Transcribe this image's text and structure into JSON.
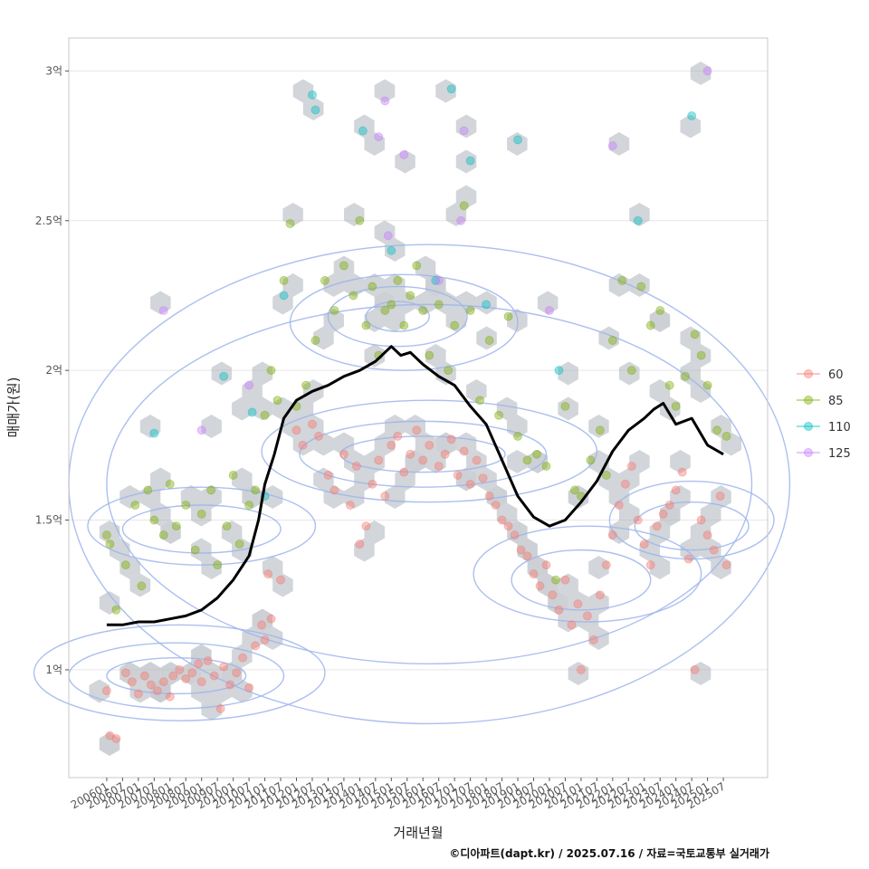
{
  "chart_data": {
    "type": "scatter",
    "title": "",
    "xlabel": "거래년월",
    "ylabel": "매매가(원)",
    "y_unit": "억",
    "ylim": [
      0.64,
      3.11
    ],
    "xlim": [
      2004.8,
      2026.9
    ],
    "y_ticks": [
      {
        "value": 1.0,
        "label": "1억"
      },
      {
        "value": 1.5,
        "label": "1.5억"
      },
      {
        "value": 2.0,
        "label": "2억"
      },
      {
        "value": 2.5,
        "label": "2.5억"
      },
      {
        "value": 3.0,
        "label": "3억"
      }
    ],
    "x_ticks": [
      "200601",
      "200607",
      "200701",
      "200707",
      "200801",
      "200807",
      "200901",
      "200907",
      "201001",
      "201007",
      "201101",
      "201107",
      "201201",
      "201207",
      "201301",
      "201307",
      "201401",
      "201407",
      "201501",
      "201507",
      "201601",
      "201607",
      "201701",
      "201707",
      "201801",
      "201807",
      "201901",
      "201907",
      "202001",
      "202007",
      "202101",
      "202107",
      "202201",
      "202207",
      "202301",
      "202307",
      "202401",
      "202407",
      "202501",
      "202507"
    ],
    "legend": {
      "position": "right",
      "entries": [
        {
          "name": "60",
          "color": "#F8766D"
        },
        {
          "name": "85",
          "color": "#7CAE00"
        },
        {
          "name": "110",
          "color": "#00BFC4"
        },
        {
          "name": "125",
          "color": "#C77CFF"
        }
      ]
    },
    "hexbin_color": "#AEB4BC",
    "contour_color": "#9DB4EC",
    "trend_color": "#000000",
    "trend_line": {
      "name": "moving-average",
      "x": [
        2006.0,
        2006.5,
        2007.0,
        2007.5,
        2008.0,
        2008.5,
        2009.0,
        2009.5,
        2010.0,
        2010.5,
        2010.8,
        2011.0,
        2011.3,
        2011.6,
        2012.0,
        2012.5,
        2013.0,
        2013.5,
        2014.0,
        2014.5,
        2015.0,
        2015.3,
        2015.6,
        2016.0,
        2016.5,
        2017.0,
        2017.5,
        2018.0,
        2018.5,
        2019.0,
        2019.5,
        2020.0,
        2020.5,
        2021.0,
        2021.5,
        2022.0,
        2022.5,
        2023.0,
        2023.3,
        2023.6,
        2024.0,
        2024.5,
        2025.0,
        2025.5
      ],
      "y": [
        1.15,
        1.15,
        1.16,
        1.16,
        1.17,
        1.18,
        1.2,
        1.24,
        1.3,
        1.38,
        1.5,
        1.62,
        1.72,
        1.84,
        1.9,
        1.93,
        1.95,
        1.98,
        2.0,
        2.03,
        2.08,
        2.05,
        2.06,
        2.02,
        1.98,
        1.95,
        1.88,
        1.82,
        1.7,
        1.58,
        1.51,
        1.48,
        1.5,
        1.56,
        1.63,
        1.73,
        1.8,
        1.84,
        1.87,
        1.89,
        1.82,
        1.84,
        1.75,
        1.72
      ]
    },
    "contours": [
      {
        "cx": 2008.2,
        "cy": 0.98,
        "rx": 2.2,
        "ry": 0.06
      },
      {
        "cx": 2008.2,
        "cy": 0.98,
        "rx": 3.4,
        "ry": 0.11
      },
      {
        "cx": 2008.3,
        "cy": 0.99,
        "rx": 4.6,
        "ry": 0.16
      },
      {
        "cx": 2009.0,
        "cy": 1.47,
        "rx": 2.5,
        "ry": 0.08
      },
      {
        "cx": 2009.0,
        "cy": 1.48,
        "rx": 3.6,
        "ry": 0.13
      },
      {
        "cx": 2016.0,
        "cy": 1.72,
        "rx": 2.6,
        "ry": 0.06
      },
      {
        "cx": 2016.0,
        "cy": 1.72,
        "rx": 3.9,
        "ry": 0.11
      },
      {
        "cx": 2016.2,
        "cy": 1.73,
        "rx": 5.3,
        "ry": 0.17
      },
      {
        "cx": 2015.2,
        "cy": 2.18,
        "rx": 1.0,
        "ry": 0.05
      },
      {
        "cx": 2015.2,
        "cy": 2.18,
        "rx": 2.2,
        "ry": 0.1
      },
      {
        "cx": 2015.4,
        "cy": 2.16,
        "rx": 3.6,
        "ry": 0.16
      },
      {
        "cx": 2021.0,
        "cy": 1.3,
        "rx": 2.2,
        "ry": 0.1
      },
      {
        "cx": 2021.2,
        "cy": 1.32,
        "rx": 3.6,
        "ry": 0.16
      },
      {
        "cx": 2024.5,
        "cy": 1.48,
        "rx": 1.8,
        "ry": 0.08
      },
      {
        "cx": 2024.5,
        "cy": 1.5,
        "rx": 2.6,
        "ry": 0.13
      },
      {
        "cx": 2016.2,
        "cy": 1.62,
        "rx": 10.2,
        "ry": 0.6
      },
      {
        "cx": 2016.2,
        "cy": 1.62,
        "rx": 11.4,
        "ry": 0.8
      }
    ],
    "series": [
      {
        "name": "60",
        "points": [
          [
            2006.0,
            0.93
          ],
          [
            2006.1,
            0.78
          ],
          [
            2006.3,
            0.77
          ],
          [
            2006.6,
            0.99
          ],
          [
            2006.8,
            0.96
          ],
          [
            2007.0,
            0.92
          ],
          [
            2007.2,
            0.98
          ],
          [
            2007.4,
            0.95
          ],
          [
            2007.6,
            0.93
          ],
          [
            2007.8,
            0.96
          ],
          [
            2008.0,
            0.91
          ],
          [
            2008.1,
            0.98
          ],
          [
            2008.3,
            1.0
          ],
          [
            2008.5,
            0.97
          ],
          [
            2008.7,
            0.99
          ],
          [
            2008.9,
            1.02
          ],
          [
            2009.0,
            0.96
          ],
          [
            2009.2,
            1.03
          ],
          [
            2009.4,
            0.98
          ],
          [
            2009.6,
            0.87
          ],
          [
            2009.7,
            1.01
          ],
          [
            2009.9,
            0.95
          ],
          [
            2010.1,
            0.99
          ],
          [
            2010.3,
            1.04
          ],
          [
            2010.5,
            0.94
          ],
          [
            2010.7,
            1.08
          ],
          [
            2010.9,
            1.15
          ],
          [
            2011.0,
            1.1
          ],
          [
            2011.2,
            1.17
          ],
          [
            2011.1,
            1.32
          ],
          [
            2011.5,
            1.3
          ],
          [
            2012.0,
            1.8
          ],
          [
            2012.2,
            1.75
          ],
          [
            2012.5,
            1.82
          ],
          [
            2012.7,
            1.78
          ],
          [
            2013.0,
            1.65
          ],
          [
            2013.2,
            1.6
          ],
          [
            2013.5,
            1.72
          ],
          [
            2013.7,
            1.55
          ],
          [
            2013.9,
            1.68
          ],
          [
            2014.0,
            1.42
          ],
          [
            2014.2,
            1.48
          ],
          [
            2014.4,
            1.62
          ],
          [
            2014.6,
            1.7
          ],
          [
            2014.8,
            1.58
          ],
          [
            2015.0,
            1.75
          ],
          [
            2015.2,
            1.78
          ],
          [
            2015.4,
            1.66
          ],
          [
            2015.6,
            1.72
          ],
          [
            2015.8,
            1.8
          ],
          [
            2016.0,
            1.7
          ],
          [
            2016.2,
            1.75
          ],
          [
            2016.5,
            1.68
          ],
          [
            2016.7,
            1.72
          ],
          [
            2016.9,
            1.77
          ],
          [
            2017.1,
            1.65
          ],
          [
            2017.3,
            1.73
          ],
          [
            2017.5,
            1.62
          ],
          [
            2017.7,
            1.7
          ],
          [
            2017.9,
            1.64
          ],
          [
            2018.1,
            1.58
          ],
          [
            2018.3,
            1.55
          ],
          [
            2018.5,
            1.5
          ],
          [
            2018.7,
            1.48
          ],
          [
            2018.9,
            1.45
          ],
          [
            2019.1,
            1.4
          ],
          [
            2019.3,
            1.38
          ],
          [
            2019.5,
            1.32
          ],
          [
            2019.7,
            1.28
          ],
          [
            2019.9,
            1.35
          ],
          [
            2020.1,
            1.25
          ],
          [
            2020.3,
            1.2
          ],
          [
            2020.5,
            1.3
          ],
          [
            2020.7,
            1.15
          ],
          [
            2020.9,
            1.22
          ],
          [
            2021.0,
            1.0
          ],
          [
            2021.2,
            1.18
          ],
          [
            2021.4,
            1.1
          ],
          [
            2021.6,
            1.25
          ],
          [
            2021.8,
            1.35
          ],
          [
            2022.0,
            1.45
          ],
          [
            2022.2,
            1.55
          ],
          [
            2022.4,
            1.62
          ],
          [
            2022.6,
            1.68
          ],
          [
            2022.8,
            1.5
          ],
          [
            2023.0,
            1.42
          ],
          [
            2023.2,
            1.35
          ],
          [
            2023.4,
            1.48
          ],
          [
            2023.6,
            1.52
          ],
          [
            2023.8,
            1.55
          ],
          [
            2024.0,
            1.6
          ],
          [
            2024.2,
            1.66
          ],
          [
            2024.4,
            1.37
          ],
          [
            2024.6,
            1.0
          ],
          [
            2024.8,
            1.5
          ],
          [
            2025.0,
            1.45
          ],
          [
            2025.2,
            1.4
          ],
          [
            2025.4,
            1.58
          ],
          [
            2025.6,
            1.35
          ]
        ]
      },
      {
        "name": "85",
        "points": [
          [
            2006.0,
            1.45
          ],
          [
            2006.1,
            1.42
          ],
          [
            2006.3,
            1.2
          ],
          [
            2006.6,
            1.35
          ],
          [
            2006.9,
            1.55
          ],
          [
            2007.1,
            1.28
          ],
          [
            2007.3,
            1.6
          ],
          [
            2007.5,
            1.5
          ],
          [
            2007.8,
            1.45
          ],
          [
            2008.0,
            1.62
          ],
          [
            2008.2,
            1.48
          ],
          [
            2008.5,
            1.55
          ],
          [
            2008.8,
            1.4
          ],
          [
            2009.0,
            1.52
          ],
          [
            2009.3,
            1.6
          ],
          [
            2009.5,
            1.35
          ],
          [
            2009.8,
            1.48
          ],
          [
            2010.0,
            1.65
          ],
          [
            2010.2,
            1.42
          ],
          [
            2010.5,
            1.55
          ],
          [
            2010.7,
            1.6
          ],
          [
            2011.0,
            1.85
          ],
          [
            2011.2,
            2.0
          ],
          [
            2011.4,
            1.9
          ],
          [
            2011.6,
            2.3
          ],
          [
            2011.8,
            2.49
          ],
          [
            2012.0,
            1.88
          ],
          [
            2012.3,
            1.95
          ],
          [
            2012.6,
            2.1
          ],
          [
            2012.9,
            2.3
          ],
          [
            2013.2,
            2.2
          ],
          [
            2013.5,
            2.35
          ],
          [
            2013.8,
            2.25
          ],
          [
            2014.0,
            2.5
          ],
          [
            2014.2,
            2.15
          ],
          [
            2014.4,
            2.28
          ],
          [
            2014.6,
            2.05
          ],
          [
            2014.8,
            2.2
          ],
          [
            2015.0,
            2.22
          ],
          [
            2015.2,
            2.3
          ],
          [
            2015.4,
            2.15
          ],
          [
            2015.6,
            2.25
          ],
          [
            2015.8,
            2.35
          ],
          [
            2016.0,
            2.2
          ],
          [
            2016.2,
            2.05
          ],
          [
            2016.5,
            2.22
          ],
          [
            2016.8,
            2.0
          ],
          [
            2017.0,
            2.15
          ],
          [
            2017.3,
            2.55
          ],
          [
            2017.5,
            2.2
          ],
          [
            2017.8,
            1.9
          ],
          [
            2018.1,
            2.1
          ],
          [
            2018.4,
            1.85
          ],
          [
            2018.7,
            2.18
          ],
          [
            2019.0,
            1.78
          ],
          [
            2019.3,
            1.7
          ],
          [
            2019.6,
            1.72
          ],
          [
            2019.9,
            1.68
          ],
          [
            2020.2,
            1.3
          ],
          [
            2020.5,
            1.88
          ],
          [
            2020.8,
            1.6
          ],
          [
            2021.0,
            1.58
          ],
          [
            2021.3,
            1.7
          ],
          [
            2021.6,
            1.8
          ],
          [
            2021.8,
            1.65
          ],
          [
            2022.0,
            2.1
          ],
          [
            2022.3,
            2.3
          ],
          [
            2022.6,
            2.0
          ],
          [
            2022.9,
            2.28
          ],
          [
            2023.2,
            2.15
          ],
          [
            2023.5,
            2.2
          ],
          [
            2023.8,
            1.95
          ],
          [
            2024.0,
            1.88
          ],
          [
            2024.3,
            1.98
          ],
          [
            2024.6,
            2.12
          ],
          [
            2024.8,
            2.05
          ],
          [
            2025.0,
            1.95
          ],
          [
            2025.3,
            1.8
          ],
          [
            2025.6,
            1.78
          ]
        ]
      },
      {
        "name": "110",
        "points": [
          [
            2007.5,
            1.79
          ],
          [
            2009.7,
            1.98
          ],
          [
            2010.6,
            1.86
          ],
          [
            2011.0,
            1.58
          ],
          [
            2011.6,
            2.25
          ],
          [
            2012.5,
            2.92
          ],
          [
            2012.6,
            2.87
          ],
          [
            2014.1,
            2.8
          ],
          [
            2015.0,
            2.4
          ],
          [
            2016.4,
            2.3
          ],
          [
            2016.9,
            2.94
          ],
          [
            2017.5,
            2.7
          ],
          [
            2018.0,
            2.22
          ],
          [
            2019.0,
            2.77
          ],
          [
            2020.3,
            2.0
          ],
          [
            2022.8,
            2.5
          ],
          [
            2024.5,
            2.85
          ]
        ]
      },
      {
        "name": "125",
        "points": [
          [
            2007.8,
            2.2
          ],
          [
            2009.0,
            1.8
          ],
          [
            2010.5,
            1.95
          ],
          [
            2014.6,
            2.78
          ],
          [
            2014.8,
            2.9
          ],
          [
            2014.9,
            2.45
          ],
          [
            2015.4,
            2.72
          ],
          [
            2016.5,
            2.3
          ],
          [
            2017.3,
            2.8
          ],
          [
            2017.2,
            2.5
          ],
          [
            2020.0,
            2.2
          ],
          [
            2022.0,
            2.75
          ],
          [
            2025.0,
            3.0
          ]
        ]
      }
    ]
  },
  "caption": "©디아파트(dapt.kr) / 2025.07.16 / 자료=국토교통부 실거래가"
}
